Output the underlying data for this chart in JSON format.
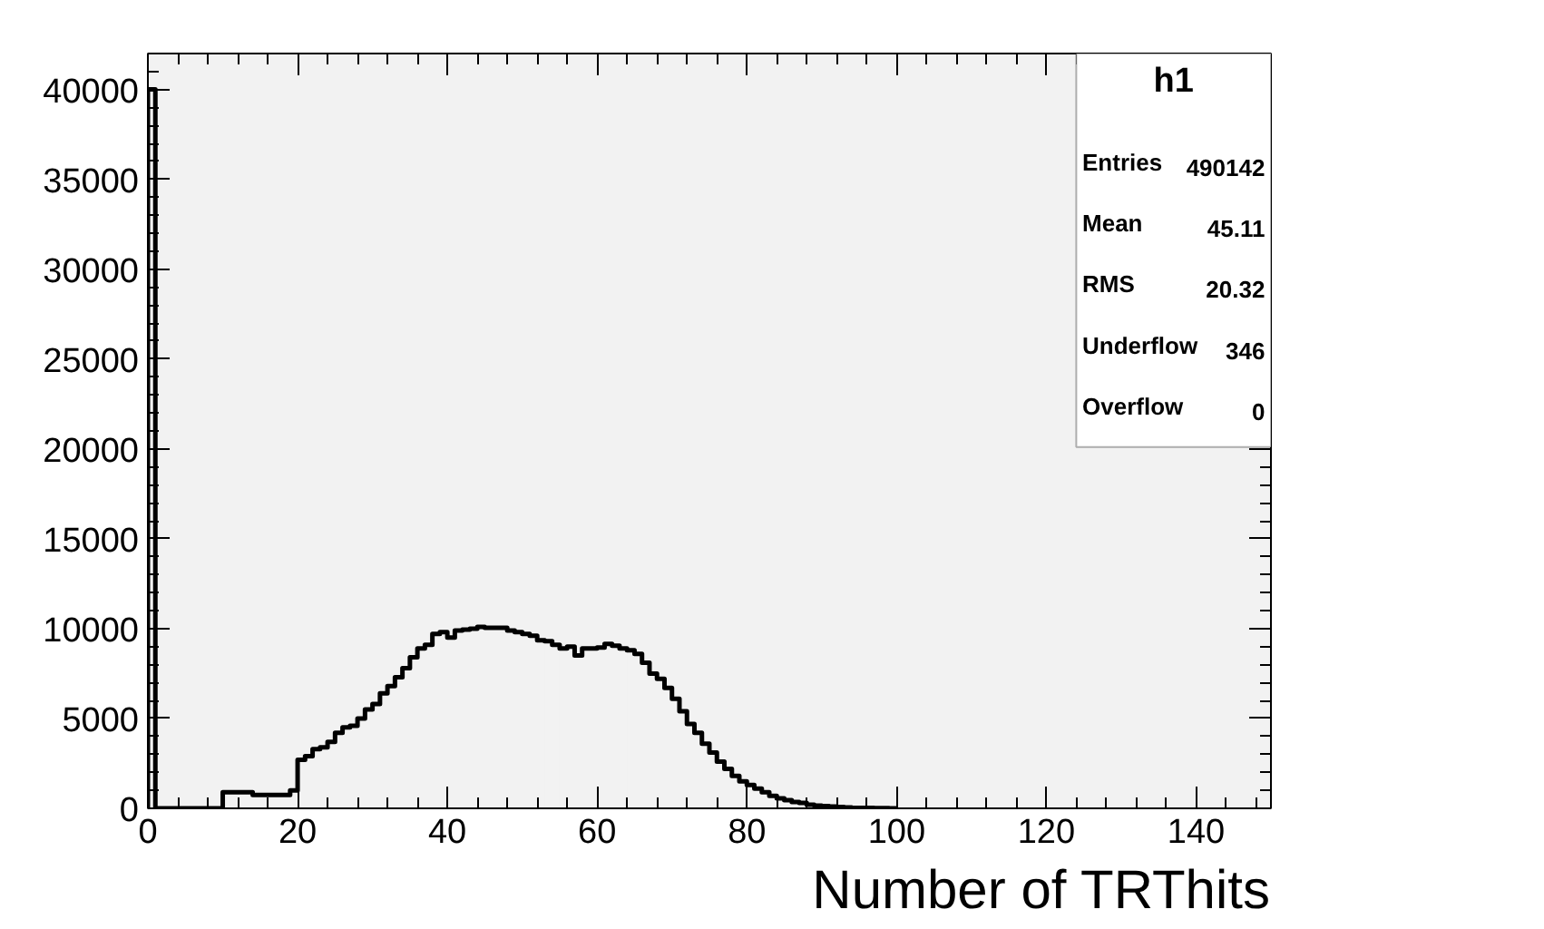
{
  "chart_data": {
    "type": "histogram",
    "xlabel": "Number of TRThits",
    "bins": [
      0,
      1,
      2,
      3,
      4,
      5,
      6,
      7,
      8,
      9,
      10,
      11,
      12,
      13,
      14,
      15,
      16,
      17,
      18,
      19,
      20,
      21,
      22,
      23,
      24,
      25,
      26,
      27,
      28,
      29,
      30,
      31,
      32,
      33,
      34,
      35,
      36,
      37,
      38,
      39,
      40,
      41,
      42,
      43,
      44,
      45,
      46,
      47,
      48,
      49,
      50,
      51,
      52,
      53,
      54,
      55,
      56,
      57,
      58,
      59,
      60,
      61,
      62,
      63,
      64,
      65,
      66,
      67,
      68,
      69,
      70,
      71,
      72,
      73,
      74,
      75,
      76,
      77,
      78,
      79,
      80,
      81,
      82,
      83,
      84,
      85,
      86,
      87,
      88,
      89,
      90,
      91,
      92,
      93,
      94,
      95,
      96,
      97,
      98,
      99,
      100
    ],
    "values": [
      40000,
      0,
      0,
      0,
      0,
      0,
      0,
      0,
      0,
      0,
      900,
      900,
      900,
      900,
      750,
      750,
      750,
      750,
      750,
      1000,
      2700,
      2900,
      3300,
      3400,
      3700,
      4200,
      4500,
      4600,
      5000,
      5500,
      5800,
      6400,
      6800,
      7300,
      7800,
      8400,
      8900,
      9100,
      9700,
      9800,
      9500,
      9900,
      9950,
      10000,
      10100,
      10050,
      10050,
      10050,
      9900,
      9800,
      9700,
      9600,
      9350,
      9300,
      9100,
      8900,
      9000,
      8500,
      8900,
      8900,
      8950,
      9150,
      9050,
      8900,
      8800,
      8600,
      8100,
      7500,
      7200,
      6700,
      6100,
      5400,
      4700,
      4200,
      3600,
      3100,
      2600,
      2200,
      1800,
      1500,
      1300,
      1100,
      900,
      700,
      550,
      450,
      350,
      300,
      200,
      150,
      120,
      100,
      80,
      50,
      30,
      20,
      20,
      10,
      10,
      0
    ],
    "color": "#000000",
    "xlim": [
      0,
      150
    ],
    "xticks": [
      0,
      20,
      40,
      60,
      80,
      100,
      120,
      140
    ],
    "ylim": [
      0,
      42000
    ],
    "yticks": [
      0,
      5000,
      10000,
      15000,
      20000,
      25000,
      30000,
      35000,
      40000
    ],
    "grid": false,
    "annotations": [
      "h1",
      "Entries 490142",
      "Mean 45.11",
      "RMS 20.32",
      "Underflow 346",
      "Overflow 0"
    ]
  }
}
